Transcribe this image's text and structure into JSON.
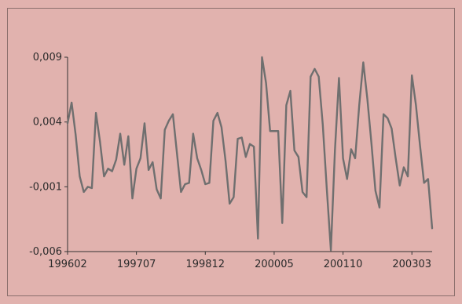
{
  "colors": {
    "background": "#e1b2ae",
    "frame": "#8a6f6c",
    "axis": "#333333",
    "series_line": "#6f6f6f"
  },
  "chart_data": {
    "type": "line",
    "title": "",
    "xlabel": "",
    "ylabel": "",
    "grid": false,
    "legend": "none",
    "ylim": [
      -0.006,
      0.009
    ],
    "y_ticks": [
      {
        "value": 0.009,
        "label": "0,009"
      },
      {
        "value": 0.004,
        "label": "0,004"
      },
      {
        "value": -0.001,
        "label": "-0,001"
      },
      {
        "value": -0.006,
        "label": "-0,006"
      }
    ],
    "x_ticks": [
      {
        "index": 0,
        "label": "199602"
      },
      {
        "index": 17,
        "label": "199707"
      },
      {
        "index": 34,
        "label": "199812"
      },
      {
        "index": 51,
        "label": "200005"
      },
      {
        "index": 68,
        "label": "200110"
      },
      {
        "index": 85,
        "label": "200303"
      }
    ],
    "series": [
      {
        "values": [
          0.0039,
          0.0055,
          0.003,
          -0.0002,
          -0.0014,
          -0.001,
          -0.0011,
          0.0047,
          0.0025,
          -0.0002,
          0.0004,
          0.0002,
          0.0011,
          0.0031,
          0.0007,
          0.0029,
          -0.0019,
          0.0004,
          0.0012,
          0.0039,
          0.0003,
          0.0009,
          -0.0012,
          -0.0019,
          0.0034,
          0.0041,
          0.0046,
          0.0016,
          -0.0014,
          -0.0008,
          -0.0007,
          0.0031,
          0.0012,
          0.0003,
          -0.0008,
          -0.0007,
          0.0041,
          0.0047,
          0.0036,
          0.001,
          -0.0023,
          -0.0018,
          0.0027,
          0.0028,
          0.0013,
          0.0023,
          0.0021,
          -0.005,
          0.009,
          0.007,
          0.0033,
          0.0033,
          0.0033,
          -0.0038,
          0.0053,
          0.0064,
          0.0018,
          0.0013,
          -0.0014,
          -0.0018,
          0.0075,
          0.0081,
          0.0075,
          0.0038,
          -0.0012,
          -0.0059,
          0.0018,
          0.0074,
          0.0012,
          -0.0004,
          0.0019,
          0.0012,
          0.0053,
          0.0086,
          0.0058,
          0.0024,
          -0.0013,
          -0.0026,
          0.0046,
          0.0043,
          0.0035,
          0.0012,
          -0.0009,
          0.0005,
          -0.0002,
          0.0076,
          0.0053,
          0.0022,
          -0.0007,
          -0.0004,
          -0.0042
        ]
      }
    ]
  }
}
